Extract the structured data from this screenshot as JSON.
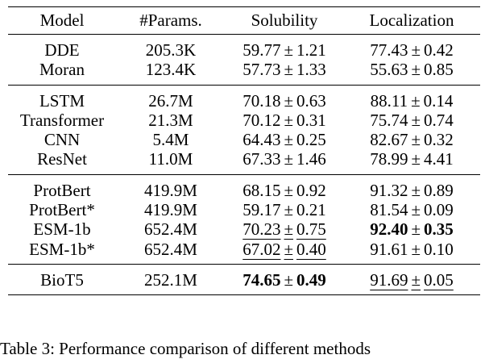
{
  "table": {
    "headers": [
      "Model",
      "#Params.",
      "Solubility",
      "Localization"
    ],
    "groups": [
      [
        {
          "model": "DDE",
          "params": "205.3K",
          "sol_mean": "59.77",
          "sol_std": "1.21",
          "loc_mean": "77.43",
          "loc_std": "0.42"
        },
        {
          "model": "Moran",
          "params": "123.4K",
          "sol_mean": "57.73",
          "sol_std": "1.33",
          "loc_mean": "55.63",
          "loc_std": "0.85"
        }
      ],
      [
        {
          "model": "LSTM",
          "params": "26.7M",
          "sol_mean": "70.18",
          "sol_std": "0.63",
          "loc_mean": "88.11",
          "loc_std": "0.14"
        },
        {
          "model": "Transformer",
          "params": "21.3M",
          "sol_mean": "70.12",
          "sol_std": "0.31",
          "loc_mean": "75.74",
          "loc_std": "0.74"
        },
        {
          "model": "CNN",
          "params": "5.4M",
          "sol_mean": "64.43",
          "sol_std": "0.25",
          "loc_mean": "82.67",
          "loc_std": "0.32"
        },
        {
          "model": "ResNet",
          "params": "11.0M",
          "sol_mean": "67.33",
          "sol_std": "1.46",
          "loc_mean": "78.99",
          "loc_std": "4.41"
        }
      ],
      [
        {
          "model": "ProtBert",
          "params": "419.9M",
          "sol_mean": "68.15",
          "sol_std": "0.92",
          "loc_mean": "91.32",
          "loc_std": "0.89"
        },
        {
          "model": "ProtBert*",
          "params": "419.9M",
          "sol_mean": "59.17",
          "sol_std": "0.21",
          "loc_mean": "81.54",
          "loc_std": "0.09"
        },
        {
          "model": "ESM-1b",
          "params": "652.4M",
          "sol_mean": "70.23",
          "sol_std": "0.75",
          "loc_mean": "92.40",
          "loc_std": "0.35",
          "sol_style": "underline",
          "loc_style": "bold"
        },
        {
          "model": "ESM-1b*",
          "params": "652.4M",
          "sol_mean": "67.02",
          "sol_std": "0.40",
          "loc_mean": "91.61",
          "loc_std": "0.10",
          "sol_style": "underline"
        }
      ],
      [
        {
          "model": "BioT5",
          "params": "252.1M",
          "sol_mean": "74.65",
          "sol_std": "0.49",
          "loc_mean": "91.69",
          "loc_std": "0.05",
          "sol_style": "bold",
          "loc_style": "underline"
        }
      ]
    ],
    "pm_symbol": "±"
  },
  "caption": "Table 3: Performance comparison of different methods"
}
